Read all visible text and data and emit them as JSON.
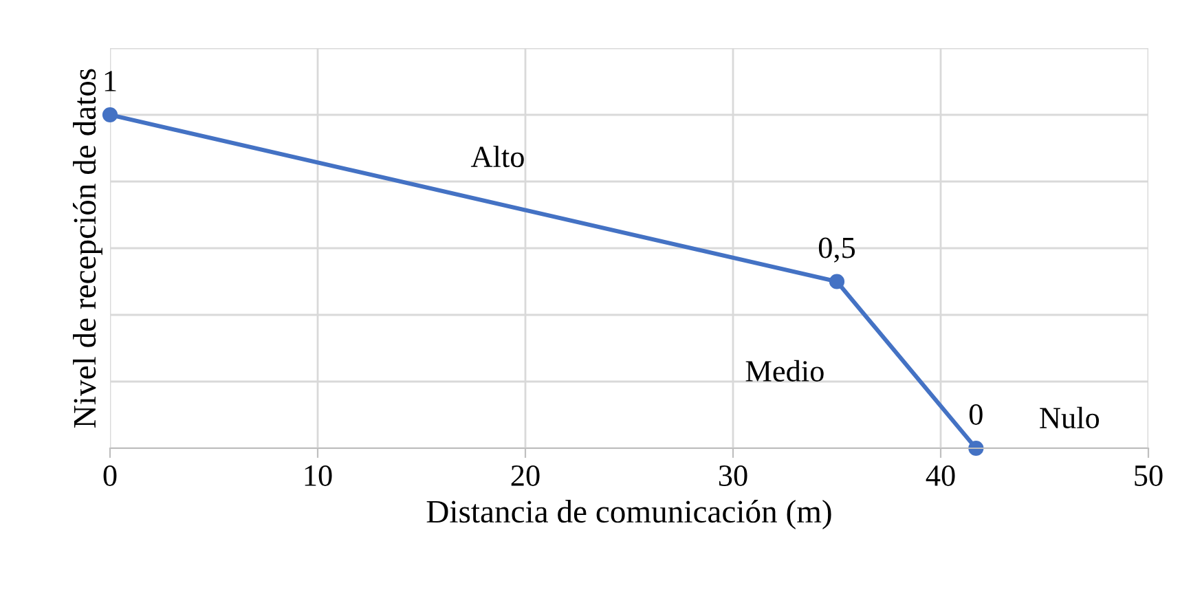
{
  "chart_data": {
    "type": "line",
    "xlabel": "Distancia de comunicación (m)",
    "ylabel": "Nivel de recepción de datos",
    "x": [
      0,
      35,
      41.7
    ],
    "series": [
      {
        "color": "#4472c4",
        "values": [
          1,
          0.5,
          0
        ],
        "value_labels": [
          "1",
          "0,5",
          "0"
        ]
      }
    ],
    "xlim": [
      0,
      50
    ],
    "xticks": [
      0,
      10,
      20,
      30,
      40,
      50
    ],
    "ylim": [
      0,
      1.2
    ],
    "yticks": [
      {
        "value": 0,
        "label": null
      },
      {
        "value": 0.2,
        "label": null
      },
      {
        "value": 0.4,
        "label": null
      },
      {
        "value": 0.6,
        "label": null
      },
      {
        "value": 0.8,
        "label": null
      },
      {
        "value": 1.0,
        "label": null
      },
      {
        "value": 1.2,
        "label": null
      }
    ],
    "tick_labels": "x",
    "grid": true,
    "marker": "circle",
    "line_style": "solid",
    "legend": false,
    "annotations": [
      "Alto",
      "Medio",
      "Nulo"
    ]
  }
}
